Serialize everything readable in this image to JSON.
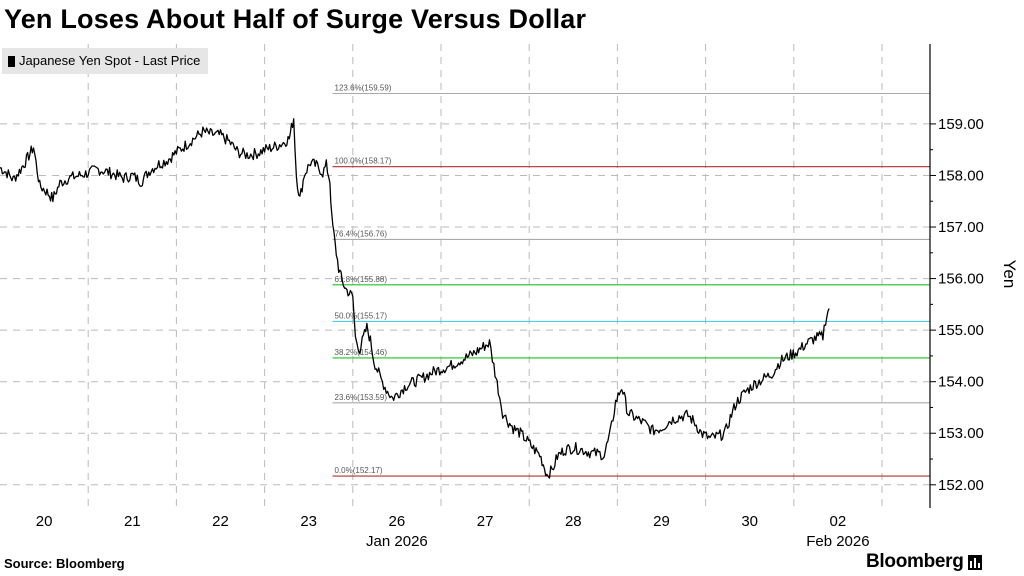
{
  "title": "Yen Loses About Half of Surge Versus Dollar",
  "legend": {
    "label": "Japanese Yen Spot - Last Price"
  },
  "source": "Source:  Bloomberg",
  "brand": "Bloomberg",
  "colors": {
    "line": "#000000",
    "grid": "#bbbbbb",
    "axis": "#000000"
  },
  "chart_data": {
    "type": "line",
    "ylabel": "Yen",
    "ylim": [
      151.55,
      160.55
    ],
    "y_ticks": [
      152,
      153,
      154,
      155,
      156,
      157,
      158,
      159
    ],
    "y_tick_labels": [
      "152.00",
      "153.00",
      "154.00",
      "155.00",
      "156.00",
      "157.00",
      "158.00",
      "159.00"
    ],
    "x_tick_labels": [
      "20",
      "21",
      "22",
      "23",
      "26",
      "27",
      "28",
      "29",
      "30",
      "02"
    ],
    "x_month_labels": [
      {
        "label": "Jan 2026",
        "at": "26"
      },
      {
        "label": "Feb 2026",
        "at": "02"
      }
    ],
    "x_range": [
      0,
      10.6
    ],
    "x_note": "x = trading-day index; 0 = start of 20 Jan session, each unit one trading day",
    "fibonacci_levels": [
      {
        "label": "123.6%(159.59)",
        "value": 159.59,
        "color": "#aaaaaa"
      },
      {
        "label": "100.0%(158.17)",
        "value": 158.17,
        "color": "#b03030"
      },
      {
        "label": "76.4%(156.76)",
        "value": 156.76,
        "color": "#aaaaaa"
      },
      {
        "label": "61.8%(155.88)",
        "value": 155.88,
        "color": "#22c022"
      },
      {
        "label": "50.0%(155.17)",
        "value": 155.17,
        "color": "#30c8e0"
      },
      {
        "label": "38.2%(154.46)",
        "value": 154.46,
        "color": "#22c022"
      },
      {
        "label": "23.6%(153.59)",
        "value": 153.59,
        "color": "#aaaaaa"
      },
      {
        "label": "0.0%(152.17)",
        "value": 152.17,
        "color": "#b03030"
      }
    ],
    "series": [
      {
        "values": [
          [
            0.0,
            158.15
          ],
          [
            0.08,
            158.05
          ],
          [
            0.15,
            157.92
          ],
          [
            0.22,
            158.08
          ],
          [
            0.3,
            158.3
          ],
          [
            0.38,
            158.55
          ],
          [
            0.45,
            157.8
          ],
          [
            0.52,
            157.7
          ],
          [
            0.6,
            157.55
          ],
          [
            0.68,
            157.85
          ],
          [
            0.78,
            157.95
          ],
          [
            0.9,
            158.0
          ],
          [
            1.0,
            158.05
          ],
          [
            1.1,
            158.12
          ],
          [
            1.2,
            158.08
          ],
          [
            1.3,
            158.02
          ],
          [
            1.4,
            157.95
          ],
          [
            1.5,
            158.0
          ],
          [
            1.6,
            157.88
          ],
          [
            1.7,
            158.1
          ],
          [
            1.8,
            158.22
          ],
          [
            1.9,
            158.3
          ],
          [
            2.0,
            158.45
          ],
          [
            2.1,
            158.58
          ],
          [
            2.2,
            158.72
          ],
          [
            2.3,
            158.85
          ],
          [
            2.4,
            158.8
          ],
          [
            2.5,
            158.78
          ],
          [
            2.6,
            158.65
          ],
          [
            2.7,
            158.45
          ],
          [
            2.8,
            158.4
          ],
          [
            2.9,
            158.42
          ],
          [
            3.0,
            158.5
          ],
          [
            3.1,
            158.55
          ],
          [
            3.2,
            158.62
          ],
          [
            3.28,
            158.72
          ],
          [
            3.33,
            159.12
          ],
          [
            3.36,
            158.0
          ],
          [
            3.4,
            157.55
          ],
          [
            3.45,
            158.02
          ],
          [
            3.52,
            158.25
          ],
          [
            3.6,
            158.18
          ],
          [
            3.66,
            158.05
          ],
          [
            3.7,
            158.2
          ],
          [
            3.74,
            157.9
          ],
          [
            3.76,
            157.2
          ],
          [
            3.8,
            156.65
          ],
          [
            3.84,
            156.2
          ],
          [
            3.88,
            155.95
          ],
          [
            3.92,
            155.8
          ],
          [
            3.96,
            155.72
          ],
          [
            4.0,
            155.65
          ],
          [
            4.03,
            154.85
          ],
          [
            4.08,
            154.62
          ],
          [
            4.12,
            154.85
          ],
          [
            4.16,
            155.05
          ],
          [
            4.2,
            154.8
          ],
          [
            4.24,
            154.4
          ],
          [
            4.28,
            154.22
          ],
          [
            4.32,
            154.05
          ],
          [
            4.38,
            153.85
          ],
          [
            4.45,
            153.68
          ],
          [
            4.52,
            153.78
          ],
          [
            4.6,
            153.92
          ],
          [
            4.7,
            154.0
          ],
          [
            4.8,
            154.08
          ],
          [
            4.9,
            154.18
          ],
          [
            5.0,
            154.25
          ],
          [
            5.1,
            154.3
          ],
          [
            5.2,
            154.4
          ],
          [
            5.3,
            154.48
          ],
          [
            5.4,
            154.58
          ],
          [
            5.48,
            154.68
          ],
          [
            5.55,
            154.75
          ],
          [
            5.6,
            154.3
          ],
          [
            5.65,
            153.85
          ],
          [
            5.7,
            153.4
          ],
          [
            5.75,
            153.25
          ],
          [
            5.82,
            153.1
          ],
          [
            5.9,
            153.0
          ],
          [
            5.98,
            152.85
          ],
          [
            6.05,
            152.7
          ],
          [
            6.12,
            152.58
          ],
          [
            6.16,
            152.4
          ],
          [
            6.2,
            152.2
          ],
          [
            6.26,
            152.28
          ],
          [
            6.32,
            152.55
          ],
          [
            6.4,
            152.68
          ],
          [
            6.5,
            152.72
          ],
          [
            6.6,
            152.68
          ],
          [
            6.7,
            152.62
          ],
          [
            6.8,
            152.6
          ],
          [
            6.85,
            152.58
          ],
          [
            6.92,
            153.0
          ],
          [
            6.98,
            153.6
          ],
          [
            7.05,
            153.9
          ],
          [
            7.12,
            153.4
          ],
          [
            7.2,
            153.3
          ],
          [
            7.3,
            153.2
          ],
          [
            7.4,
            153.05
          ],
          [
            7.5,
            153.1
          ],
          [
            7.6,
            153.25
          ],
          [
            7.7,
            153.32
          ],
          [
            7.8,
            153.35
          ],
          [
            7.88,
            153.2
          ],
          [
            7.95,
            153.0
          ],
          [
            8.05,
            152.9
          ],
          [
            8.15,
            152.95
          ],
          [
            8.22,
            153.0
          ],
          [
            8.28,
            153.3
          ],
          [
            8.35,
            153.6
          ],
          [
            8.45,
            153.8
          ],
          [
            8.55,
            153.95
          ],
          [
            8.65,
            154.05
          ],
          [
            8.75,
            154.15
          ],
          [
            8.85,
            154.4
          ],
          [
            8.95,
            154.5
          ],
          [
            9.05,
            154.6
          ],
          [
            9.15,
            154.75
          ],
          [
            9.25,
            154.85
          ],
          [
            9.33,
            154.88
          ],
          [
            9.36,
            155.2
          ],
          [
            9.4,
            155.42
          ]
        ]
      }
    ]
  }
}
